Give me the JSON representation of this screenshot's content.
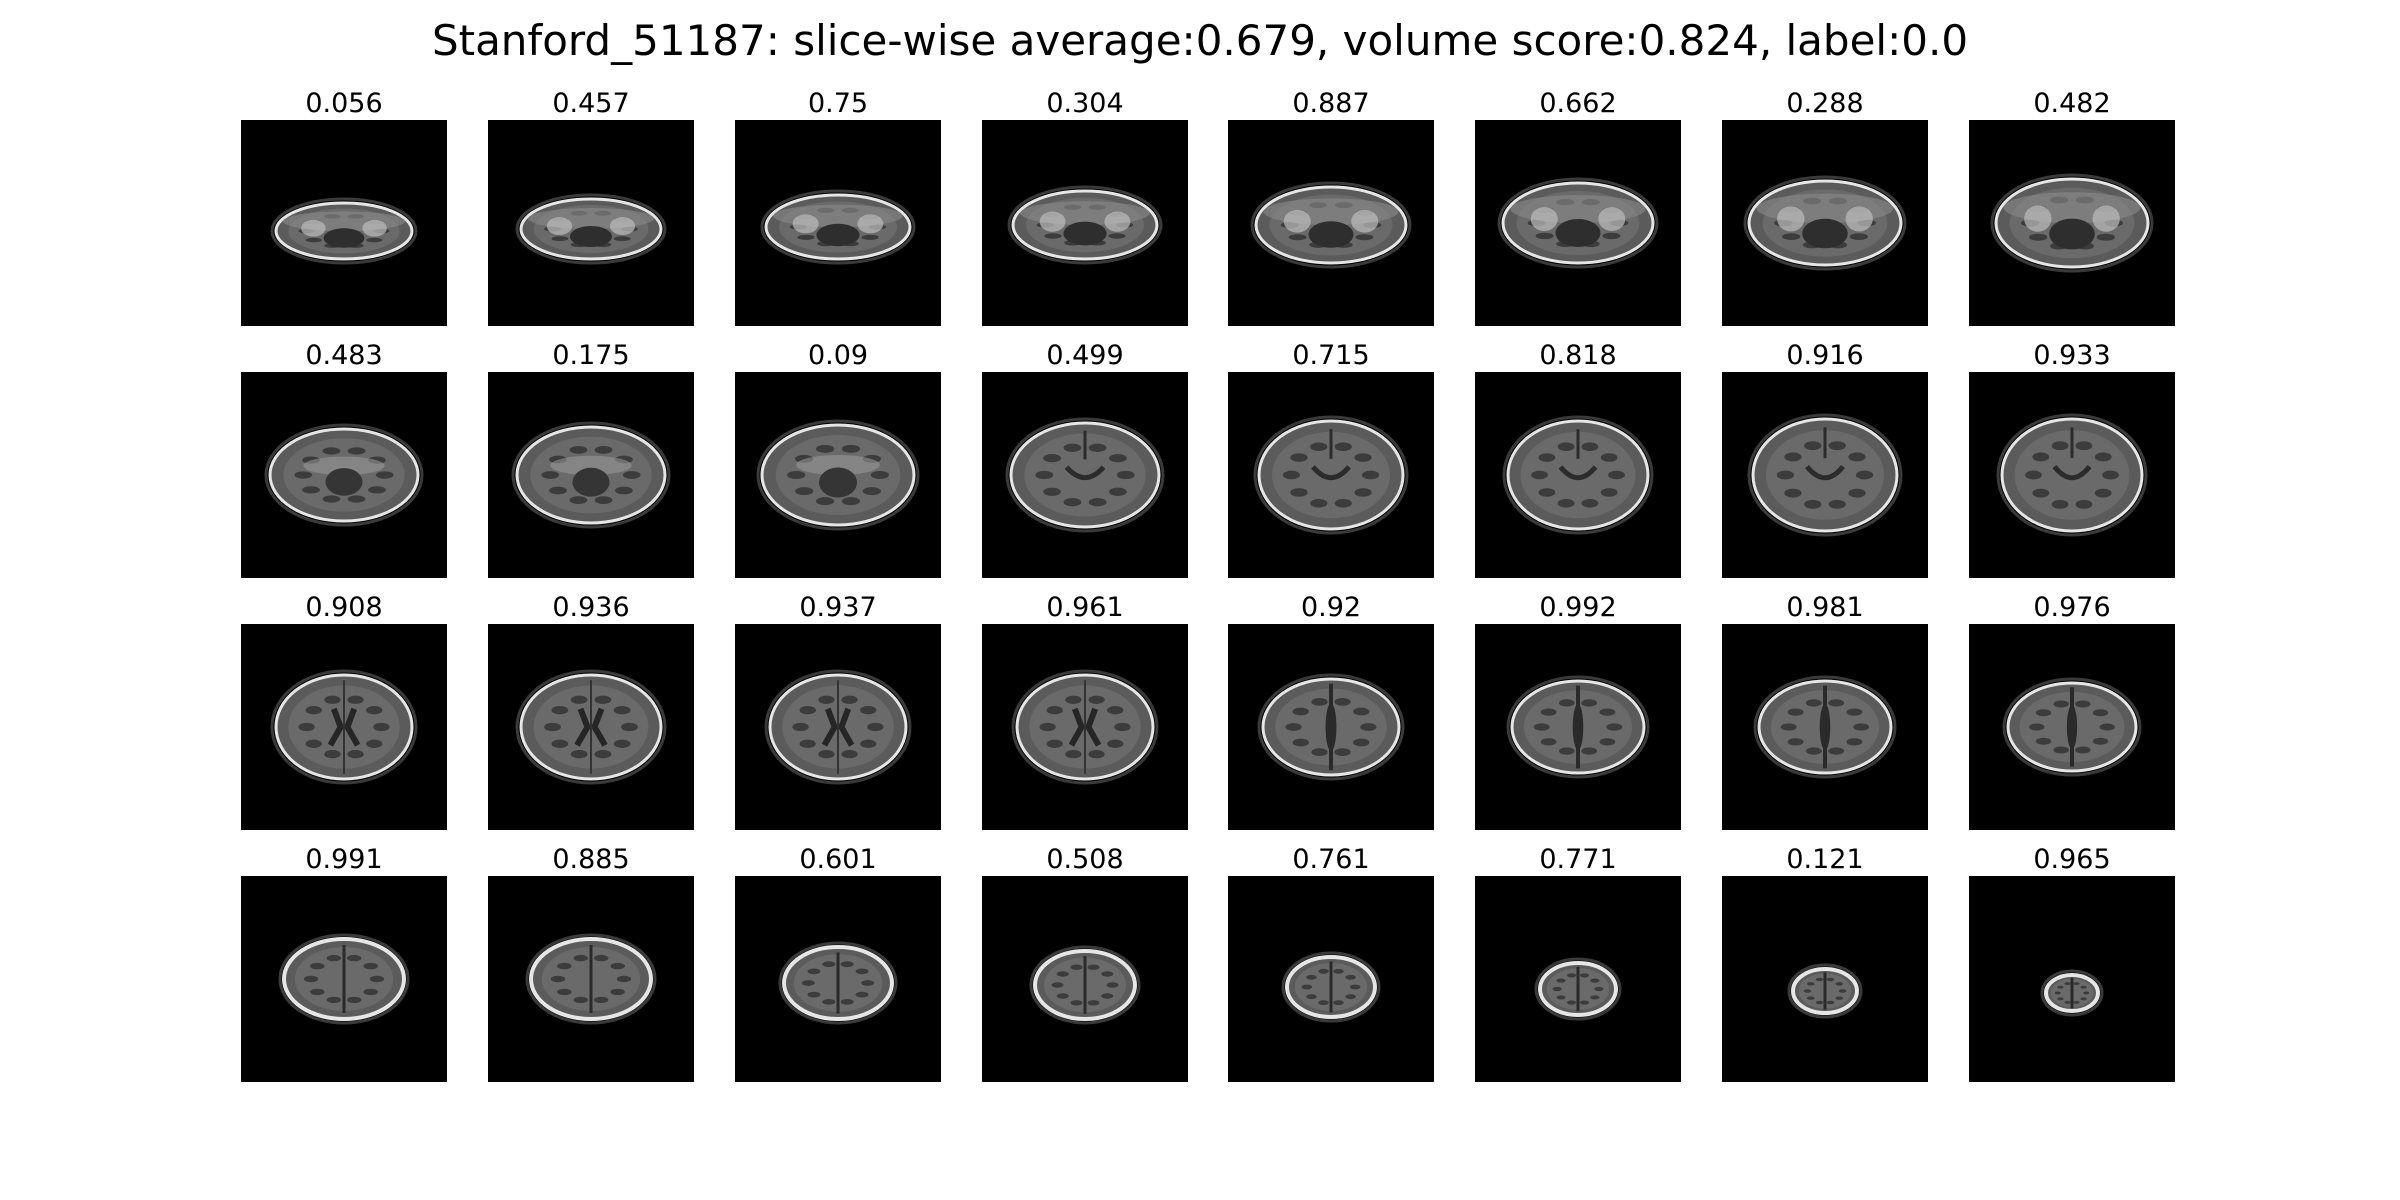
{
  "figure": {
    "title": "Stanford_51187: slice-wise average:0.679, volume score:0.824, label:0.0"
  },
  "slices": [
    {
      "score": "0.056",
      "kind": "skullbase"
    },
    {
      "score": "0.457",
      "kind": "skullbase"
    },
    {
      "score": "0.75",
      "kind": "skullbase"
    },
    {
      "score": "0.304",
      "kind": "skullbase"
    },
    {
      "score": "0.887",
      "kind": "skullbase"
    },
    {
      "score": "0.662",
      "kind": "skullbase"
    },
    {
      "score": "0.288",
      "kind": "skullbase"
    },
    {
      "score": "0.482",
      "kind": "skullbase"
    },
    {
      "score": "0.483",
      "kind": "mid-low"
    },
    {
      "score": "0.175",
      "kind": "mid-low"
    },
    {
      "score": "0.09",
      "kind": "mid-low"
    },
    {
      "score": "0.499",
      "kind": "mid"
    },
    {
      "score": "0.715",
      "kind": "mid"
    },
    {
      "score": "0.818",
      "kind": "mid"
    },
    {
      "score": "0.916",
      "kind": "mid"
    },
    {
      "score": "0.933",
      "kind": "mid"
    },
    {
      "score": "0.908",
      "kind": "ventricle"
    },
    {
      "score": "0.936",
      "kind": "ventricle"
    },
    {
      "score": "0.937",
      "kind": "ventricle"
    },
    {
      "score": "0.961",
      "kind": "ventricle"
    },
    {
      "score": "0.92",
      "kind": "upper"
    },
    {
      "score": "0.992",
      "kind": "upper"
    },
    {
      "score": "0.981",
      "kind": "upper"
    },
    {
      "score": "0.976",
      "kind": "upper"
    },
    {
      "score": "0.991",
      "kind": "top"
    },
    {
      "score": "0.885",
      "kind": "top"
    },
    {
      "score": "0.601",
      "kind": "top"
    },
    {
      "score": "0.508",
      "kind": "top"
    },
    {
      "score": "0.761",
      "kind": "top"
    },
    {
      "score": "0.771",
      "kind": "top"
    },
    {
      "score": "0.121",
      "kind": "top"
    },
    {
      "score": "0.965",
      "kind": "top"
    }
  ]
}
